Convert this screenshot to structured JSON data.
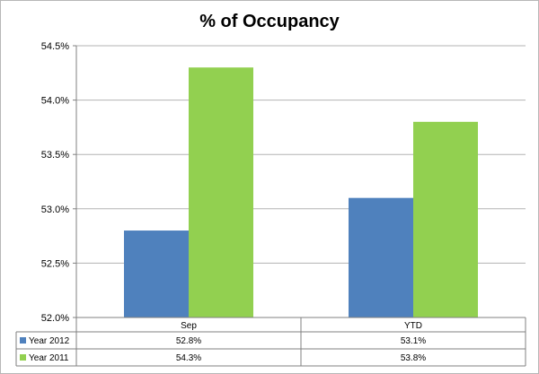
{
  "chart_data": {
    "type": "bar",
    "title": "% of Occupancy",
    "categories": [
      "Sep",
      "YTD"
    ],
    "series": [
      {
        "name": "Year 2012",
        "values": [
          52.8,
          53.1
        ],
        "labels": [
          "52.8%",
          "53.1%"
        ],
        "color": "#4f81bd"
      },
      {
        "name": "Year 2011",
        "values": [
          54.3,
          53.8
        ],
        "labels": [
          "54.3%",
          "53.8%"
        ],
        "color": "#92d050"
      }
    ],
    "ylim": [
      52.0,
      54.5
    ],
    "yticks": [
      "52.0%",
      "52.5%",
      "53.0%",
      "53.5%",
      "54.0%",
      "54.5%"
    ],
    "grid": true,
    "legend": "data-table-below"
  }
}
